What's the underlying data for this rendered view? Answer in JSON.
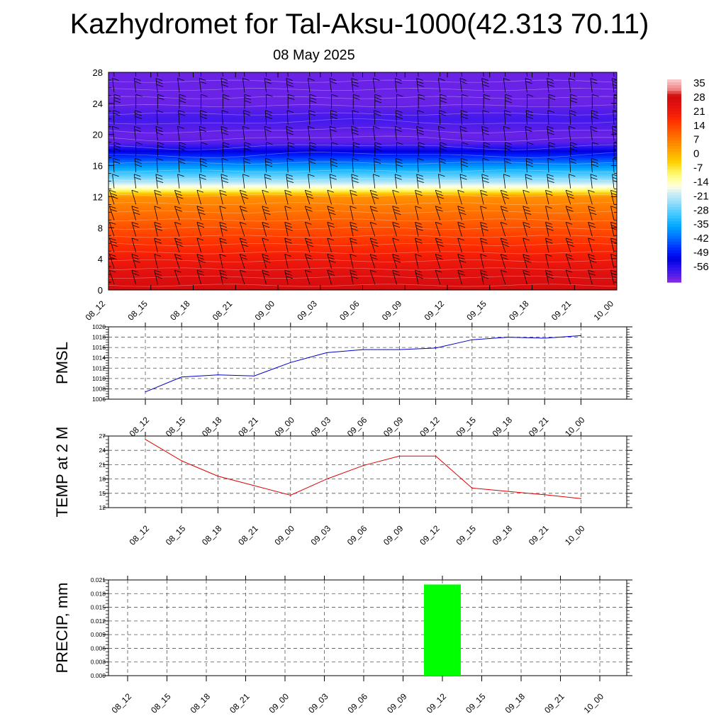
{
  "title": "Kazhydromet for Tal-Aksu-1000(42.313 70.11)",
  "subtitle": "08 May 2025",
  "chart_data": [
    {
      "type": "heatmap",
      "name_role": "temperature-altitude cross-section with wind barbs",
      "x_categories": [
        "08_12",
        "08_15",
        "08_18",
        "08_21",
        "09_00",
        "09_03",
        "09_06",
        "09_09",
        "09_12",
        "09_15",
        "09_18",
        "09_21",
        "10_00"
      ],
      "y_ticks": [
        0,
        4,
        8,
        12,
        16,
        20,
        24,
        28
      ],
      "ylim": [
        0,
        28
      ],
      "colorbar_labels": [
        "35",
        "28",
        "21",
        "14",
        "7",
        "0",
        "-7",
        "-14",
        "-21",
        "-28",
        "-35",
        "-42",
        "-49",
        "-56"
      ],
      "colorbar_range": [
        -60,
        38
      ],
      "levels_y": [
        0,
        2,
        4,
        6,
        8,
        10,
        12,
        13,
        14,
        16,
        18,
        19,
        20,
        22,
        24,
        26,
        28
      ],
      "levels_temp": [
        29,
        26,
        22,
        18,
        14,
        10,
        6,
        -10,
        -20,
        -35,
        -50,
        -57,
        -58,
        -55,
        -58,
        -58,
        -58
      ],
      "colors": {
        "warm_base": "#e8140a",
        "cold_top": "#8a2be2",
        "min": "#0000e0"
      }
    },
    {
      "type": "line",
      "ylabel": "PMSL",
      "x": [
        "08_12",
        "08_15",
        "08_18",
        "08_21",
        "09_00",
        "09_03",
        "09_06",
        "09_09",
        "09_12",
        "09_15",
        "09_18",
        "09_21",
        "10_00"
      ],
      "y_ticks": [
        "1006",
        "1008",
        "1010",
        "1012",
        "1014",
        "1016",
        "1018",
        "1020"
      ],
      "ylim": [
        1006,
        1020
      ],
      "values": [
        1007.4,
        1010.3,
        1010.7,
        1010.5,
        1013.1,
        1015.0,
        1015.6,
        1015.6,
        1015.9,
        1017.5,
        1018.0,
        1017.8,
        1018.3
      ],
      "color": "#0000cc"
    },
    {
      "type": "line",
      "ylabel": "TEMP at 2 M",
      "x": [
        "08_12",
        "08_15",
        "08_18",
        "08_21",
        "09_00",
        "09_03",
        "09_06",
        "09_09",
        "09_12",
        "09_15",
        "09_18",
        "09_21",
        "10_00"
      ],
      "y_ticks": [
        "12",
        "15",
        "18",
        "21",
        "24",
        "27"
      ],
      "ylim": [
        12,
        27
      ],
      "values": [
        26.3,
        21.8,
        18.6,
        16.6,
        14.6,
        18.0,
        20.8,
        22.8,
        22.8,
        16.1,
        15.4,
        14.7,
        13.9
      ],
      "color": "#dd0000"
    },
    {
      "type": "bar",
      "ylabel": "PRECIP, mm",
      "x": [
        "08_12",
        "08_15",
        "08_18",
        "08_21",
        "09_00",
        "09_03",
        "09_06",
        "09_09",
        "09_12",
        "09_15",
        "09_18",
        "09_21",
        "10_00"
      ],
      "y_ticks": [
        "0.000",
        "0.003",
        "0.006",
        "0.009",
        "0.012",
        "0.015",
        "0.018",
        "0.021"
      ],
      "ylim": [
        0,
        0.021
      ],
      "values": [
        0,
        0,
        0,
        0,
        0,
        0,
        0,
        0,
        0.02,
        0,
        0,
        0,
        0
      ],
      "color": "#00ff00"
    }
  ]
}
